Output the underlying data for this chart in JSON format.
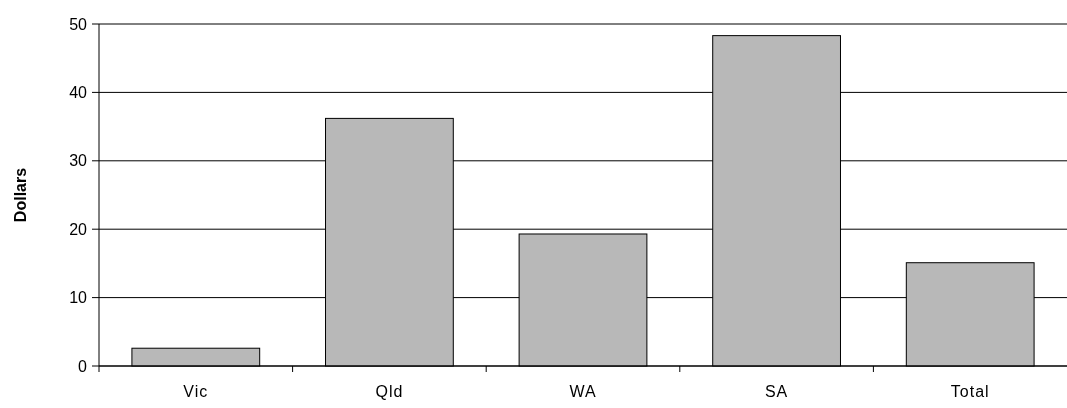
{
  "chart_data": {
    "type": "bar",
    "ylabel": "Dollars",
    "categories": [
      "Vic",
      "Qld",
      "WA",
      "SA",
      "Total"
    ],
    "values": [
      2.6,
      36.2,
      19.3,
      48.3,
      15.1
    ],
    "color": "#b8b8b8",
    "ylim": [
      0,
      50
    ],
    "yticks": [
      0,
      10,
      20,
      30,
      40,
      50
    ],
    "grid": "y"
  }
}
